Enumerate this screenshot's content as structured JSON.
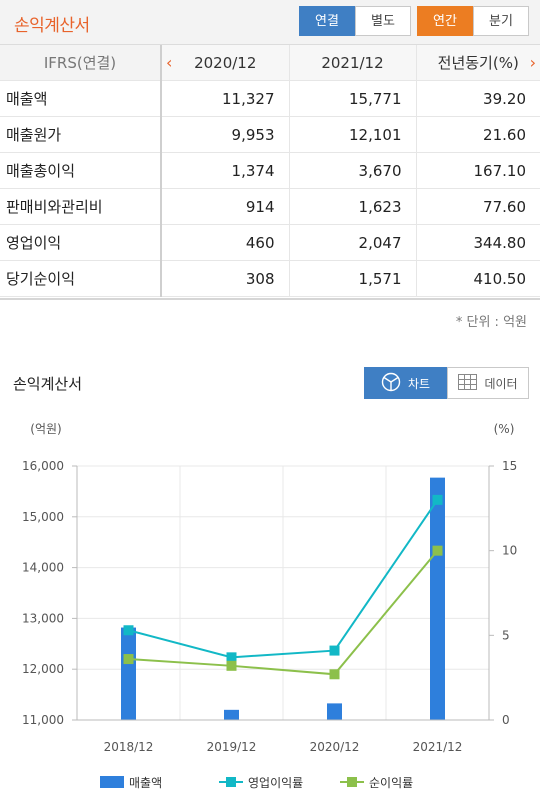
{
  "header": {
    "title": "손익계산서",
    "consolidation": {
      "options": [
        "연결",
        "별도"
      ],
      "selected": "연결"
    },
    "period": {
      "options": [
        "연간",
        "분기"
      ],
      "selected": "연간"
    }
  },
  "table": {
    "header_first": "IFRS(연결)",
    "prev_arrow": "‹",
    "next_arrow": "›",
    "columns": [
      "2020/12",
      "2021/12",
      "전년동기(%)"
    ],
    "rows": [
      {
        "label": "매출액",
        "values": [
          "11,327",
          "15,771",
          "39.20"
        ]
      },
      {
        "label": "매출원가",
        "values": [
          "9,953",
          "12,101",
          "21.60"
        ]
      },
      {
        "label": "매출총이익",
        "values": [
          "1,374",
          "3,670",
          "167.10"
        ]
      },
      {
        "label": "판매비와관리비",
        "values": [
          "914",
          "1,623",
          "77.60"
        ]
      },
      {
        "label": "영업이익",
        "values": [
          "460",
          "2,047",
          "344.80"
        ]
      },
      {
        "label": "당기순이익",
        "values": [
          "308",
          "1,571",
          "410.50"
        ]
      }
    ],
    "unit_note": "* 단위 : 억원"
  },
  "chart_section": {
    "title": "손익계산서",
    "view_chart_label": "차트",
    "view_data_label": "데이터",
    "selected_view": "차트"
  },
  "chart_data": {
    "type": "bar",
    "categories": [
      "2018/12",
      "2019/12",
      "2020/12",
      "2021/12"
    ],
    "left_axis_unit": "(억원)",
    "right_axis_unit": "(%)",
    "y_left": {
      "min": 11000,
      "max": 16000,
      "ticks": [
        "11,000",
        "12,000",
        "13,000",
        "14,000",
        "15,000",
        "16,000"
      ],
      "tick_values": [
        11000,
        12000,
        13000,
        14000,
        15000,
        16000
      ]
    },
    "y_right": {
      "min": 0,
      "max": 15,
      "ticks": [
        "0",
        "5",
        "10",
        "15"
      ],
      "tick_values": [
        0,
        5,
        10,
        15
      ]
    },
    "series": [
      {
        "name": "매출액",
        "kind": "bar",
        "axis": "left",
        "color": "#2e7fdc",
        "values": [
          12820,
          11200,
          11327,
          15771
        ]
      },
      {
        "name": "영업이익률",
        "kind": "line",
        "axis": "right",
        "color": "#12b8c6",
        "values": [
          5.3,
          3.7,
          4.1,
          13.0
        ]
      },
      {
        "name": "순이익률",
        "kind": "line",
        "axis": "right",
        "color": "#8cc04b",
        "values": [
          3.6,
          3.2,
          2.7,
          10.0
        ]
      }
    ],
    "grid": true
  }
}
